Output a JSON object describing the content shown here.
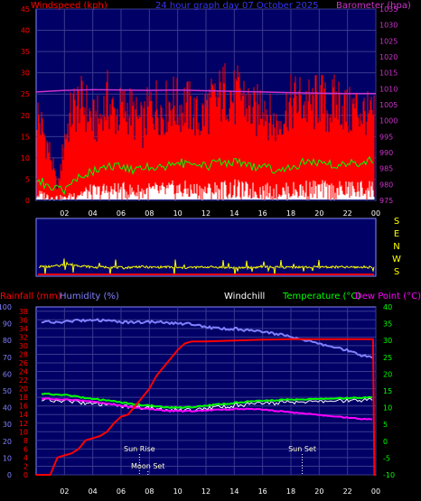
{
  "colors": {
    "bg": "#000000",
    "plot_bg": "#000066",
    "grid": "#3a3a90",
    "wind": "#ff0000",
    "gust": "#ff0000",
    "avg_wind": "#00ff00",
    "wind_white": "#ffffff",
    "barometer": "#cc33cc",
    "direction": "#ffff00",
    "rain": "#ff0000",
    "humidity": "#8080ff",
    "windchill": "#ffffff",
    "temperature": "#00ff00",
    "dew_point": "#ff00ff",
    "title": "#3333ff",
    "sun": "#ffffff"
  },
  "header": {
    "left_label": "Windspeed (kph)",
    "title": "24 hour graph day 07 October 2025",
    "right_label": "Barometer (hpa)"
  },
  "lower_labels": {
    "rainfall": "Rainfall (mm)",
    "humidity": "Humidity (%)",
    "windchill": "Windchill",
    "temperature": "Temperature (°C)",
    "dewpoint": "Dew Point (°C)"
  },
  "direction_labels": [
    "S",
    "E",
    "N",
    "W",
    "S"
  ],
  "annotations": {
    "sun_rise": "Sun Rise",
    "moon_set": "Moon Set",
    "sun_set": "Sun Set"
  },
  "chart_data": [
    {
      "type": "line",
      "name": "wind_barometer",
      "x_ticks": [
        "02",
        "04",
        "06",
        "08",
        "10",
        "12",
        "14",
        "16",
        "18",
        "20",
        "22",
        "00"
      ],
      "x_range_hours": [
        0,
        24
      ],
      "y_left_ticks": [
        "0",
        "5",
        "10",
        "15",
        "20",
        "25",
        "30",
        "35",
        "40",
        "45"
      ],
      "y_left_range": [
        0,
        45
      ],
      "y_right_ticks": [
        "975",
        "980",
        "985",
        "990",
        "995",
        "1000",
        "1005",
        "1010",
        "1015",
        "1020",
        "1025",
        "1030",
        "1035"
      ],
      "y_right_range": [
        975,
        1035
      ],
      "series": [
        {
          "key": "gust",
          "x": [
            0,
            0.5,
            1,
            1.5,
            2,
            2.5,
            3,
            3.5,
            4,
            4.5,
            5,
            5.5,
            6,
            6.5,
            7,
            7.5,
            8,
            8.5,
            9,
            9.5,
            10,
            10.5,
            11,
            11.5,
            12,
            12.5,
            13,
            13.5,
            14,
            14.5,
            15,
            15.5,
            16,
            16.5,
            17,
            17.5,
            18,
            18.5,
            19,
            19.5,
            20,
            20.5,
            21,
            21.5,
            22,
            22.5,
            23,
            23.5,
            24
          ],
          "values": [
            24,
            18,
            12,
            3,
            17,
            24,
            26,
            25,
            21,
            22,
            27,
            23,
            24,
            25,
            22,
            20,
            25,
            26,
            24,
            27,
            25,
            26,
            24,
            21,
            25,
            26,
            28,
            30,
            27,
            29,
            25,
            23,
            28,
            22,
            20,
            24,
            26,
            27,
            26,
            25,
            28,
            24,
            26,
            27,
            23,
            25,
            24,
            22,
            23
          ]
        },
        {
          "key": "wind",
          "x": [
            0,
            0.5,
            1,
            1.5,
            2,
            2.5,
            3,
            3.5,
            4,
            4.5,
            5,
            5.5,
            6,
            6.5,
            7,
            7.5,
            8,
            8.5,
            9,
            9.5,
            10,
            10.5,
            11,
            11.5,
            12,
            12.5,
            13,
            13.5,
            14,
            14.5,
            15,
            15.5,
            16,
            16.5,
            17,
            17.5,
            18,
            18.5,
            19,
            19.5,
            20,
            20.5,
            21,
            21.5,
            22,
            22.5,
            23,
            23.5,
            24
          ],
          "values": [
            14,
            11,
            7,
            2,
            11,
            15,
            16,
            15,
            13,
            14,
            16,
            14,
            15,
            16,
            14,
            13,
            15,
            16,
            15,
            17,
            16,
            16,
            15,
            13,
            15,
            16,
            17,
            18,
            16,
            17,
            15,
            14,
            17,
            13,
            12,
            14,
            16,
            17,
            16,
            15,
            17,
            15,
            16,
            17,
            14,
            15,
            15,
            14,
            15
          ]
        },
        {
          "key": "avg_wind",
          "x": [
            0,
            1,
            2,
            3,
            4,
            5,
            6,
            7,
            8,
            9,
            10,
            11,
            12,
            13,
            14,
            15,
            16,
            17,
            18,
            19,
            20,
            21,
            22,
            23,
            24
          ],
          "values": [
            5,
            3,
            2,
            6,
            7,
            8,
            8,
            7,
            8,
            8,
            9,
            8,
            8,
            9,
            9,
            8,
            8,
            7,
            8,
            9,
            9,
            8,
            9,
            9,
            10
          ]
        },
        {
          "key": "barometer",
          "x": [
            0,
            2,
            4,
            6,
            8,
            10,
            12,
            14,
            16,
            18,
            20,
            22,
            24
          ],
          "values": [
            1009,
            1009.5,
            1009.7,
            1009.6,
            1009.5,
            1009.6,
            1009.4,
            1009.2,
            1009.0,
            1008.8,
            1008.6,
            1008.5,
            1008.5
          ]
        }
      ]
    },
    {
      "type": "line",
      "name": "wind_direction",
      "x_range_hours": [
        0,
        24
      ],
      "y_labels": [
        "S",
        "E",
        "N",
        "W",
        "S"
      ],
      "series": [
        {
          "key": "direction",
          "x": [
            0,
            1,
            2,
            3,
            4,
            5,
            6,
            7,
            8,
            9,
            10,
            11,
            12,
            13,
            14,
            15,
            16,
            17,
            18,
            19,
            20,
            21,
            22,
            23,
            24
          ],
          "values": [
            60,
            60,
            75,
            65,
            55,
            58,
            52,
            60,
            55,
            58,
            52,
            55,
            58,
            55,
            52,
            55,
            58,
            55,
            57,
            56,
            58,
            57,
            56,
            57,
            57
          ]
        }
      ]
    },
    {
      "type": "line",
      "name": "rain_humidity_temperature",
      "x_ticks": [
        "02",
        "04",
        "06",
        "08",
        "10",
        "12",
        "14",
        "16",
        "18",
        "20",
        "22",
        "00"
      ],
      "x_range_hours": [
        0,
        24
      ],
      "y_humidity_ticks": [
        "0",
        "10",
        "20",
        "30",
        "40",
        "50",
        "60",
        "70",
        "80",
        "90",
        "100"
      ],
      "y_humidity_range": [
        0,
        100
      ],
      "y_rain_ticks": [
        "0",
        "2",
        "4",
        "6",
        "8",
        "10",
        "12",
        "14",
        "16",
        "18",
        "20",
        "22",
        "24",
        "26",
        "28",
        "30",
        "32",
        "34",
        "36",
        "38"
      ],
      "y_rain_range": [
        0,
        39
      ],
      "y_temp_ticks": [
        "-10",
        "-5",
        "0",
        "5",
        "10",
        "15",
        "20",
        "25",
        "30",
        "35",
        "40"
      ],
      "y_temp_range": [
        -10,
        40
      ],
      "series": [
        {
          "key": "rain",
          "x": [
            0,
            0.5,
            1,
            1.5,
            2,
            2.5,
            3,
            3.5,
            4,
            4.5,
            5,
            5.5,
            6,
            6.5,
            7,
            7.5,
            8,
            8.5,
            9,
            9.5,
            10,
            10.5,
            11,
            12,
            14,
            16,
            18,
            20,
            22,
            23.8,
            23.9,
            24
          ],
          "values": [
            0,
            0,
            0,
            4,
            4.5,
            5,
            6,
            8,
            8.5,
            9,
            10,
            12,
            13.5,
            14,
            16,
            18,
            20,
            23,
            25,
            27,
            29,
            30.5,
            31,
            31,
            31.2,
            31.4,
            31.5,
            31.5,
            31.5,
            31.5,
            0,
            0
          ]
        },
        {
          "key": "humidity",
          "x": [
            0,
            1,
            2,
            3,
            4,
            5,
            6,
            7,
            8,
            9,
            10,
            11,
            12,
            13,
            14,
            15,
            16,
            17,
            18,
            19,
            20,
            21,
            22,
            23,
            24
          ],
          "values": [
            91,
            91,
            91,
            92,
            92,
            92,
            91,
            91,
            91,
            91,
            90,
            90,
            88,
            87,
            87,
            86,
            85,
            84,
            82,
            80,
            78,
            76,
            74,
            71,
            69
          ]
        },
        {
          "key": "windchill",
          "x": [
            0,
            1,
            2,
            3,
            4,
            5,
            6,
            7,
            8,
            9,
            10,
            11,
            12,
            13,
            14,
            15,
            16,
            17,
            18,
            19,
            20,
            21,
            22,
            23,
            24
          ],
          "values": [
            12.3,
            12.2,
            12,
            11.6,
            11.2,
            11.0,
            10.6,
            10.2,
            9.8,
            9.4,
            9.2,
            9.4,
            9.8,
            10.2,
            10.6,
            11.0,
            11.2,
            11.4,
            11.6,
            11.6,
            11.8,
            11.9,
            12,
            12.1,
            12.2
          ]
        },
        {
          "key": "temperature",
          "x": [
            0,
            1,
            2,
            3,
            4,
            5,
            6,
            7,
            8,
            9,
            10,
            11,
            12,
            13,
            14,
            15,
            16,
            17,
            18,
            19,
            20,
            21,
            22,
            23,
            24
          ],
          "values": [
            14.2,
            14.0,
            13.8,
            13.2,
            12.6,
            12.2,
            11.6,
            11.0,
            10.6,
            10.2,
            10.0,
            10.2,
            10.6,
            11.0,
            11.4,
            11.8,
            12.0,
            12.2,
            12.4,
            12.4,
            12.6,
            12.7,
            12.8,
            12.9,
            13.0
          ]
        },
        {
          "key": "dewpoint",
          "x": [
            0,
            1,
            2,
            3,
            4,
            5,
            6,
            7,
            8,
            9,
            10,
            11,
            12,
            13,
            14,
            15,
            16,
            17,
            18,
            19,
            20,
            21,
            22,
            23,
            24
          ],
          "values": [
            12.8,
            12.6,
            12.4,
            12.2,
            11.8,
            11.2,
            10.6,
            10.0,
            9.6,
            9.2,
            9.0,
            9.0,
            9.2,
            9.4,
            9.6,
            9.6,
            9.4,
            9.0,
            8.6,
            8.2,
            7.8,
            7.4,
            7.0,
            6.6,
            6.4
          ]
        }
      ],
      "markers": [
        {
          "key": "sun_rise",
          "hour": 7.3
        },
        {
          "key": "moon_set",
          "hour": 7.9
        },
        {
          "key": "sun_set",
          "hour": 18.8
        }
      ]
    }
  ]
}
